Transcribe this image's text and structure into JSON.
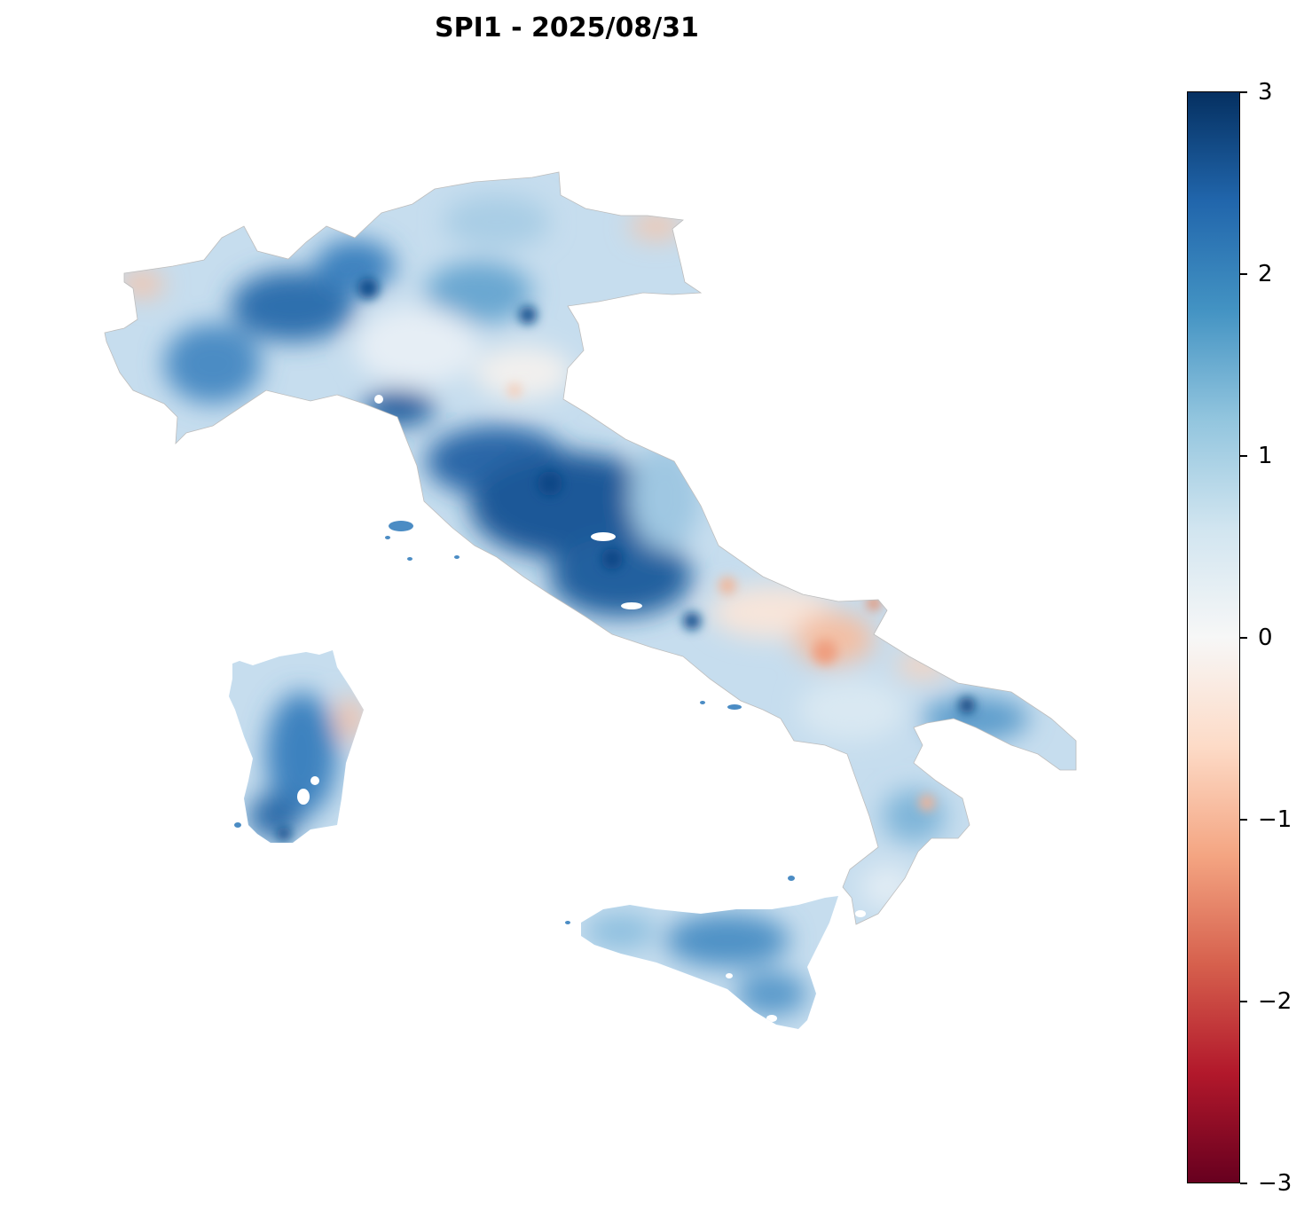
{
  "title": "SPI1 - 2025/08/31",
  "colorbar": {
    "min": -3,
    "max": 3,
    "ticks": [
      {
        "value": 3,
        "label": "3"
      },
      {
        "value": 2,
        "label": "2"
      },
      {
        "value": 1,
        "label": "1"
      },
      {
        "value": 0,
        "label": "0"
      },
      {
        "value": -1,
        "label": "−1"
      },
      {
        "value": -2,
        "label": "−2"
      },
      {
        "value": -3,
        "label": "−3"
      }
    ],
    "colormap": [
      "#67001f",
      "#b2182b",
      "#d6604d",
      "#f4a582",
      "#fddbc7",
      "#f7f7f7",
      "#d1e5f0",
      "#92c5de",
      "#4393c3",
      "#2166ac",
      "#053061"
    ]
  },
  "map_regions": [
    "Italian peninsula",
    "Sardinia",
    "Sicily"
  ]
}
